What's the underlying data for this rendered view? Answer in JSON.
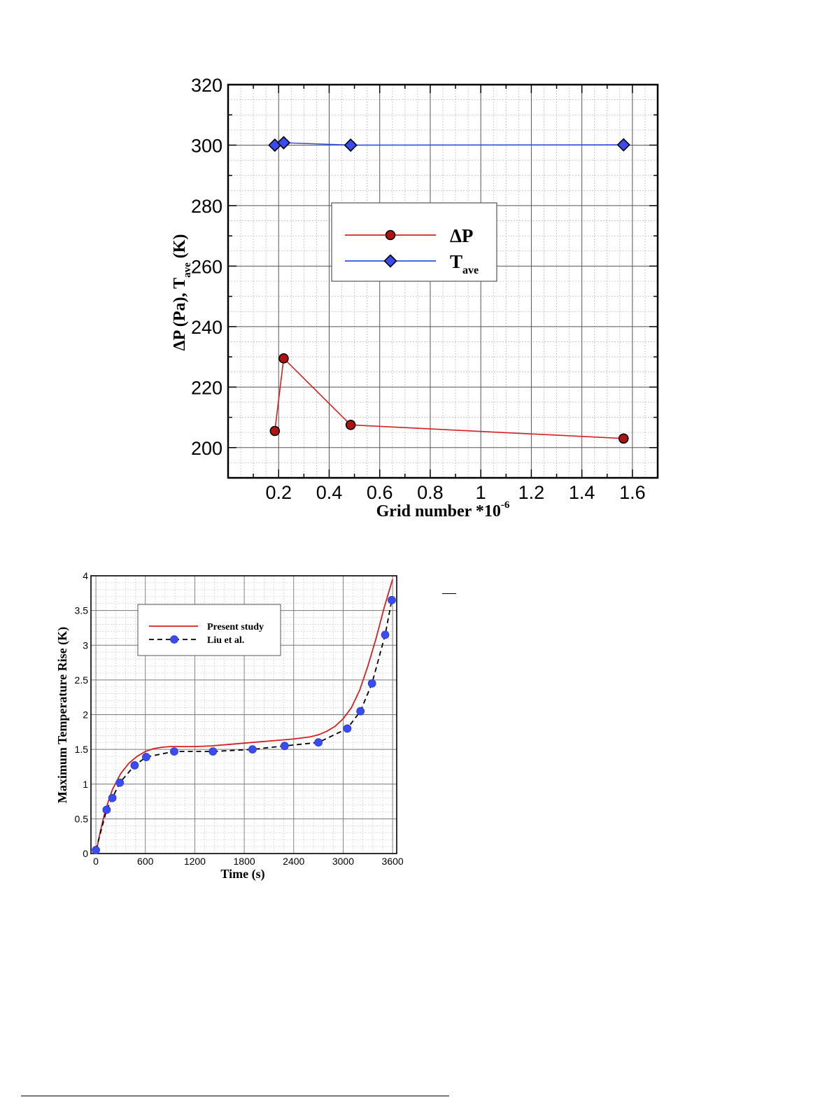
{
  "chart_data": [
    {
      "type": "line",
      "xlabel": "Grid number *10",
      "xlabel_sup": "-6",
      "ylabel_parts": [
        "ΔP (Pa), T",
        "ave",
        " (K)"
      ],
      "xlim": [
        0,
        1.7
      ],
      "ylim": [
        190,
        320
      ],
      "xticks": [
        0.2,
        0.4,
        0.6,
        0.8,
        1,
        1.2,
        1.4,
        1.6
      ],
      "xtick_labels": [
        "0.2",
        "0.4",
        "0.6",
        "0.8",
        "1",
        "1.2",
        "1.4",
        "1.6"
      ],
      "yticks": [
        200,
        220,
        240,
        260,
        280,
        300,
        320
      ],
      "ytick_labels": [
        "200",
        "220",
        "240",
        "260",
        "280",
        "300",
        "320"
      ],
      "grid": true,
      "legend_position": "upper-middle-right",
      "series": [
        {
          "name": "ΔP",
          "legend_main": "ΔP",
          "legend_sub": "",
          "color": "#d42020",
          "marker": "circle",
          "marker_color": "#b01212",
          "x": [
            0.185,
            0.22,
            0.485,
            1.565
          ],
          "y": [
            205.5,
            229.5,
            207.5,
            203.0
          ]
        },
        {
          "name": "Tave",
          "legend_main": "T",
          "legend_sub": "ave",
          "color": "#3050e0",
          "marker": "diamond",
          "marker_color": "#3a4cf0",
          "x": [
            0.185,
            0.22,
            0.485,
            1.565
          ],
          "y": [
            300.0,
            300.8,
            300.0,
            300.1
          ]
        }
      ]
    },
    {
      "type": "line",
      "xlabel": "Time (s)",
      "ylabel": "Maximum Temperature Rise (K)",
      "xlim": [
        -60,
        3650
      ],
      "ylim": [
        0,
        4
      ],
      "xticks": [
        0,
        600,
        1200,
        1800,
        2400,
        3000,
        3600
      ],
      "xtick_labels": [
        "0",
        "600",
        "1200",
        "1800",
        "2400",
        "3000",
        "3600"
      ],
      "yticks": [
        0,
        0.5,
        1,
        1.5,
        2,
        2.5,
        3,
        3.5,
        4
      ],
      "ytick_labels": [
        "0",
        "0.5",
        "1",
        "1.5",
        "2",
        "2.5",
        "3",
        "3.5",
        "4"
      ],
      "grid": true,
      "legend_position": "top-left",
      "series": [
        {
          "name": "Present study",
          "color": "#d42020",
          "style": "solid",
          "x": [
            0,
            50,
            100,
            150,
            200,
            300,
            400,
            500,
            600,
            700,
            800,
            900,
            1000,
            1200,
            1400,
            1600,
            1800,
            2000,
            2200,
            2400,
            2600,
            2700,
            2800,
            2900,
            3000,
            3100,
            3200,
            3300,
            3400,
            3500,
            3550,
            3600
          ],
          "y": [
            0.0,
            0.3,
            0.55,
            0.75,
            0.92,
            1.15,
            1.3,
            1.4,
            1.47,
            1.51,
            1.53,
            1.54,
            1.54,
            1.54,
            1.55,
            1.57,
            1.59,
            1.61,
            1.63,
            1.65,
            1.68,
            1.71,
            1.76,
            1.83,
            1.94,
            2.1,
            2.35,
            2.7,
            3.1,
            3.55,
            3.75,
            3.95
          ]
        },
        {
          "name": "Liu et al.",
          "color": "#000000",
          "style": "dashed",
          "marker": "circle",
          "marker_color": "#3a4cf0",
          "x": [
            0,
            130,
            200,
            290,
            470,
            610,
            950,
            1420,
            1900,
            2290,
            2700,
            3050,
            3210,
            3350,
            3510,
            3590
          ],
          "y": [
            0.05,
            0.63,
            0.8,
            1.02,
            1.27,
            1.39,
            1.47,
            1.47,
            1.5,
            1.55,
            1.6,
            1.8,
            2.05,
            2.45,
            3.15,
            3.65
          ]
        }
      ]
    }
  ]
}
